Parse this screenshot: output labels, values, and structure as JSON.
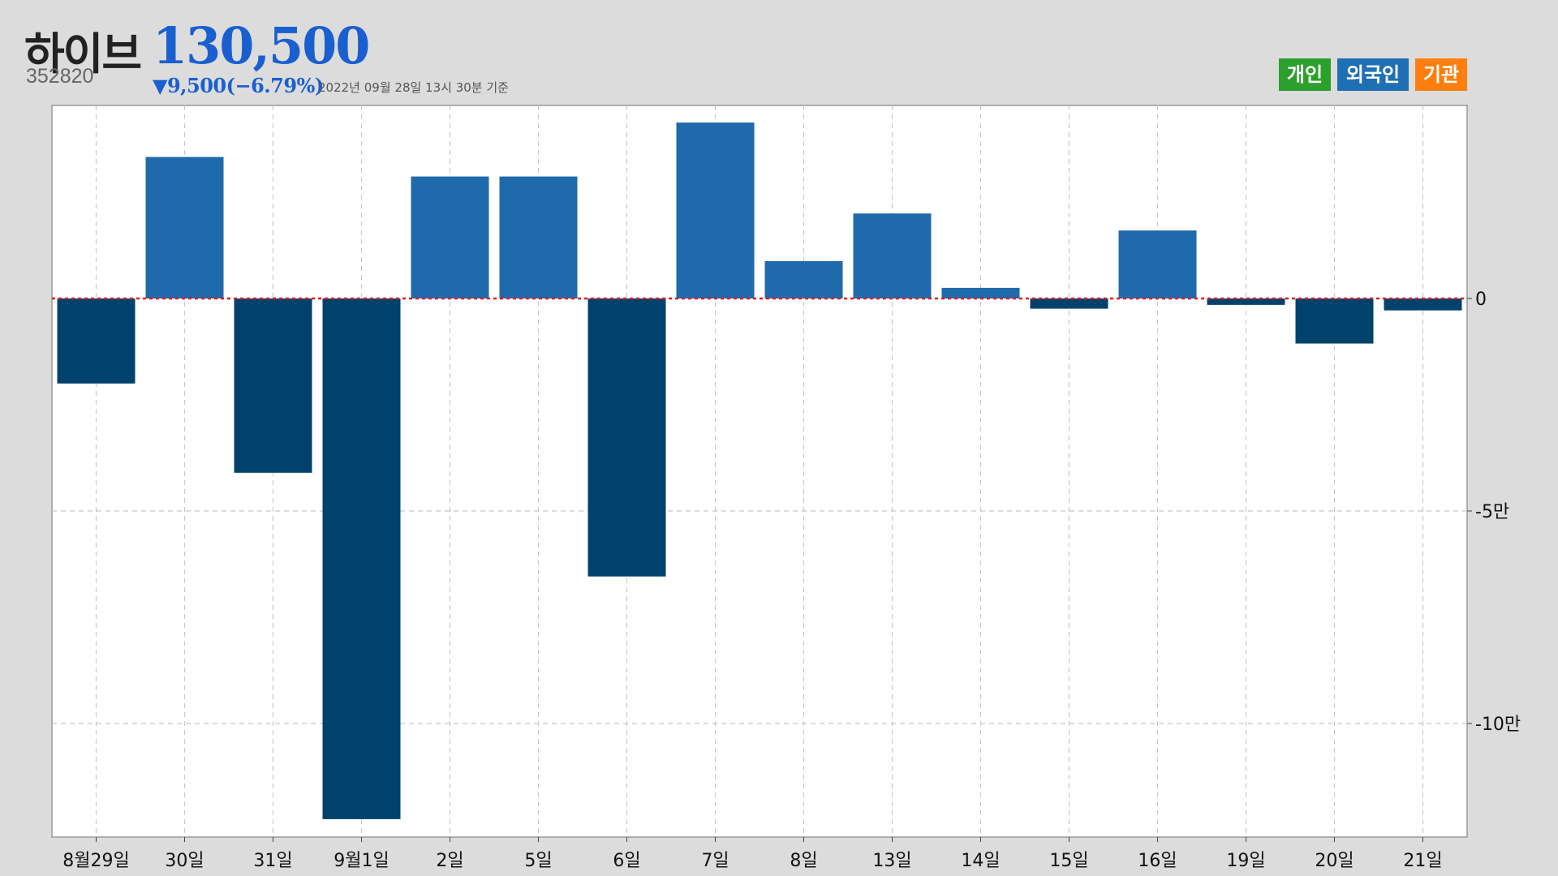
{
  "header": {
    "name": "하이브",
    "code": "352820",
    "price": "130,500",
    "change": "▼9,500(−6.79%)",
    "asof": "2022년 09월 28일 13시 30분 기준"
  },
  "legend": [
    {
      "label": "개인",
      "color": "#2ca02c"
    },
    {
      "label": "외국인",
      "color": "#1f6fb4"
    },
    {
      "label": "기관",
      "color": "#ff7f0e"
    }
  ],
  "colors": {
    "positive": "#1f6aab",
    "negative": "#00426b",
    "zero_line": "#e31a1c",
    "plot_bg": "#ffffff",
    "grid": "#c8c8c8"
  },
  "chart_data": {
    "type": "bar",
    "series_shown": "외국인",
    "categories": [
      "8월29일",
      "30일",
      "31일",
      "9월1일",
      "2일",
      "5일",
      "6일",
      "7일",
      "8일",
      "13일",
      "14일",
      "15일",
      "16일",
      "19일",
      "20일",
      "21일"
    ],
    "values": [
      -20000,
      33300,
      -41000,
      -122500,
      28700,
      28700,
      -65400,
      41400,
      8800,
      20000,
      2500,
      -2400,
      16000,
      -1500,
      -10600,
      -2800
    ],
    "yticks": [
      0,
      -50000,
      -100000
    ],
    "ytick_labels": [
      "0",
      "-5만",
      "-10만"
    ],
    "ylim": [
      -126000,
      45000
    ],
    "grid": true,
    "ytick_side": "right"
  }
}
